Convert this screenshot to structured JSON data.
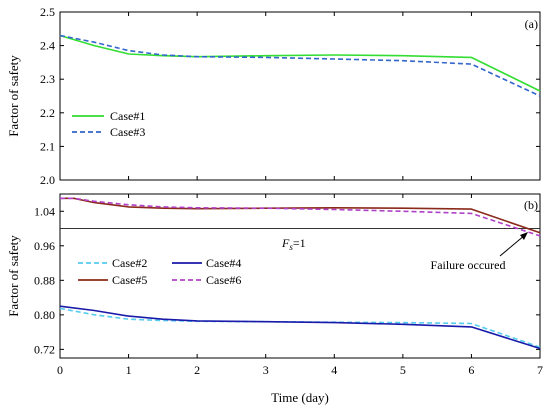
{
  "chart_data": [
    {
      "type": "line",
      "panel_label": "(a)",
      "xlabel": "",
      "ylabel": "Factor of safety",
      "xlim": [
        0,
        7
      ],
      "ylim": [
        2.0,
        2.5
      ],
      "x_ticks": [
        "0",
        "1",
        "2",
        "3",
        "4",
        "5",
        "6",
        "7"
      ],
      "y_ticks": [
        "2.0",
        "2.1",
        "2.2",
        "2.3",
        "2.4",
        "2.5"
      ],
      "x_tick_values": [
        0,
        1,
        2,
        3,
        4,
        5,
        6,
        7
      ],
      "y_tick_values": [
        2.0,
        2.1,
        2.2,
        2.3,
        2.4,
        2.5
      ],
      "grid": false,
      "legend": "left",
      "series": [
        {
          "name": "Case#1",
          "color": "#33dd33",
          "dash": "solid",
          "x": [
            0,
            0.5,
            1,
            1.5,
            2,
            3,
            4,
            5,
            6,
            7
          ],
          "y": [
            2.43,
            2.4,
            2.375,
            2.37,
            2.367,
            2.37,
            2.372,
            2.37,
            2.365,
            2.265
          ]
        },
        {
          "name": "Case#3",
          "color": "#3366cc",
          "dash": "dashed",
          "x": [
            0,
            0.5,
            1,
            1.5,
            2,
            3,
            4,
            5,
            6,
            7
          ],
          "y": [
            2.43,
            2.41,
            2.385,
            2.372,
            2.367,
            2.365,
            2.36,
            2.355,
            2.345,
            2.25
          ]
        }
      ]
    },
    {
      "type": "line",
      "panel_label": "(b)",
      "xlabel": "Time (day)",
      "ylabel": "Factor of safety",
      "xlim": [
        0,
        7
      ],
      "ylim": [
        0.7,
        1.08
      ],
      "x_ticks": [
        "0",
        "1",
        "2",
        "3",
        "4",
        "5",
        "6",
        "7"
      ],
      "y_ticks": [
        "0.72",
        "0.80",
        "0.88",
        "0.96",
        "1.04"
      ],
      "x_tick_values": [
        0,
        1,
        2,
        3,
        4,
        5,
        6,
        7
      ],
      "y_tick_values": [
        0.72,
        0.8,
        0.88,
        0.96,
        1.04
      ],
      "grid": false,
      "legend": "center-left",
      "reference_line": {
        "y": 1.0,
        "label_main": "F",
        "label_sub": "s",
        "label_rest": "=1"
      },
      "annotation": "Failure occured",
      "series": [
        {
          "name": "Case#2",
          "color": "#55ccee",
          "dash": "dashed",
          "x": [
            0,
            0.5,
            1,
            1.5,
            2,
            3,
            4,
            5,
            6,
            7
          ],
          "y": [
            0.815,
            0.8,
            0.79,
            0.787,
            0.785,
            0.784,
            0.783,
            0.782,
            0.78,
            0.725
          ]
        },
        {
          "name": "Case#4",
          "color": "#1a1aaa",
          "dash": "solid",
          "x": [
            0,
            0.5,
            1,
            1.5,
            2,
            3,
            4,
            5,
            6,
            7
          ],
          "y": [
            0.82,
            0.81,
            0.797,
            0.79,
            0.786,
            0.784,
            0.782,
            0.778,
            0.772,
            0.722
          ]
        },
        {
          "name": "Case#5",
          "color": "#8b2a1a",
          "dash": "solid",
          "x": [
            0,
            0.2,
            0.5,
            1,
            1.5,
            2,
            3,
            4,
            5,
            6,
            7
          ],
          "y": [
            1.07,
            1.07,
            1.06,
            1.05,
            1.047,
            1.046,
            1.047,
            1.048,
            1.047,
            1.045,
            0.99
          ]
        },
        {
          "name": "Case#6",
          "color": "#b040c8",
          "dash": "dashed",
          "x": [
            0,
            0.2,
            0.5,
            1,
            1.5,
            2,
            3,
            4,
            5,
            6,
            7
          ],
          "y": [
            1.07,
            1.07,
            1.063,
            1.055,
            1.05,
            1.048,
            1.047,
            1.044,
            1.04,
            1.035,
            0.983
          ]
        }
      ]
    }
  ]
}
